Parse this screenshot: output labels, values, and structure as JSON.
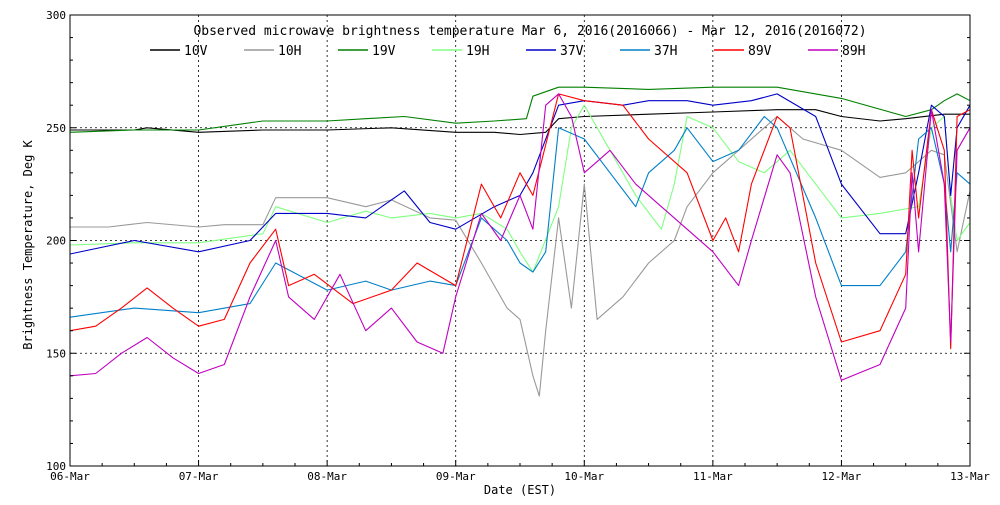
{
  "chart_data": {
    "type": "line",
    "title": "Observed microwave brightness temperature Mar  6, 2016(2016066) - Mar 12, 2016(2016072)",
    "xlabel": "Date (EST)",
    "ylabel": "Brightness Temperature, Deg K",
    "xlim": [
      0,
      7
    ],
    "ylim": [
      100,
      300
    ],
    "x_ticks": [
      {
        "value": 0,
        "label": "06-Mar"
      },
      {
        "value": 1,
        "label": "07-Mar"
      },
      {
        "value": 2,
        "label": "08-Mar"
      },
      {
        "value": 3,
        "label": "09-Mar"
      },
      {
        "value": 4,
        "label": "10-Mar"
      },
      {
        "value": 5,
        "label": "11-Mar"
      },
      {
        "value": 6,
        "label": "12-Mar"
      },
      {
        "value": 7,
        "label": "13-Mar"
      }
    ],
    "y_ticks": [
      {
        "value": 100,
        "label": "100"
      },
      {
        "value": 150,
        "label": "150"
      },
      {
        "value": 200,
        "label": "200"
      },
      {
        "value": 250,
        "label": "250"
      },
      {
        "value": 300,
        "label": "300"
      }
    ],
    "grid": true,
    "legend_position": "top",
    "series": [
      {
        "name": "10V",
        "color": "#000000",
        "x": [
          0,
          0.5,
          0.6,
          1,
          1.5,
          2,
          2.5,
          3,
          3.3,
          3.5,
          3.7,
          3.8,
          4,
          4.5,
          5,
          5.5,
          5.8,
          6,
          6.3,
          6.5,
          6.8,
          7
        ],
        "values": [
          249,
          249,
          250,
          248,
          249,
          249,
          250,
          248,
          248,
          247,
          248,
          254,
          255,
          256,
          257,
          258,
          258,
          255,
          253,
          254,
          256,
          256
        ]
      },
      {
        "name": "10H",
        "color": "#999999",
        "x": [
          0,
          0.3,
          0.6,
          1,
          1.2,
          1.5,
          1.6,
          2,
          2.3,
          2.5,
          2.8,
          3,
          3.2,
          3.4,
          3.5,
          3.6,
          3.65,
          3.7,
          3.8,
          3.9,
          4,
          4.1,
          4.3,
          4.5,
          4.7,
          4.8,
          5,
          5.2,
          5.5,
          5.7,
          6,
          6.3,
          6.5,
          6.6,
          6.7,
          6.8,
          6.9,
          7
        ],
        "values": [
          206,
          206,
          208,
          206,
          207,
          207,
          219,
          219,
          215,
          218,
          210,
          209,
          190,
          170,
          165,
          140,
          131,
          160,
          210,
          170,
          225,
          165,
          175,
          190,
          200,
          215,
          230,
          240,
          255,
          245,
          240,
          228,
          230,
          235,
          240,
          238,
          195,
          222
        ]
      },
      {
        "name": "19V",
        "color": "#008000",
        "x": [
          0,
          0.5,
          1,
          1.5,
          2,
          2.3,
          2.6,
          3,
          3.3,
          3.55,
          3.6,
          3.8,
          4,
          4.5,
          5,
          5.5,
          6,
          6.5,
          6.7,
          6.8,
          6.9,
          7
        ],
        "values": [
          248,
          249,
          249,
          253,
          253,
          254,
          255,
          252,
          253,
          254,
          264,
          268,
          268,
          267,
          268,
          268,
          263,
          255,
          258,
          262,
          265,
          262
        ]
      },
      {
        "name": "19H",
        "color": "#80ff80",
        "x": [
          0,
          0.5,
          1,
          1.5,
          1.6,
          2,
          2.3,
          2.5,
          2.8,
          3,
          3.2,
          3.4,
          3.5,
          3.6,
          3.8,
          3.9,
          4,
          4.2,
          4.4,
          4.6,
          4.7,
          4.8,
          5,
          5.2,
          5.4,
          5.6,
          5.8,
          6,
          6.3,
          6.6,
          6.7,
          6.8,
          6.85,
          6.9,
          7
        ],
        "values": [
          198,
          199,
          199,
          203,
          215,
          208,
          213,
          210,
          212,
          210,
          212,
          205,
          195,
          186,
          215,
          250,
          260,
          240,
          220,
          205,
          225,
          255,
          250,
          235,
          230,
          240,
          225,
          210,
          212,
          215,
          250,
          255,
          220,
          200,
          208
        ]
      },
      {
        "name": "37V",
        "color": "#0000c8",
        "x": [
          0,
          0.5,
          1,
          1.4,
          1.6,
          2,
          2.3,
          2.6,
          2.8,
          3,
          3.3,
          3.5,
          3.6,
          3.8,
          4,
          4.3,
          4.5,
          4.8,
          5,
          5.3,
          5.5,
          5.8,
          6,
          6.3,
          6.5,
          6.6,
          6.7,
          6.8,
          6.85,
          6.9,
          7
        ],
        "values": [
          194,
          200,
          195,
          200,
          212,
          212,
          210,
          222,
          208,
          205,
          215,
          220,
          230,
          260,
          262,
          260,
          262,
          262,
          260,
          262,
          265,
          255,
          225,
          203,
          203,
          230,
          260,
          255,
          220,
          250,
          260
        ]
      },
      {
        "name": "37H",
        "color": "#0080c8",
        "x": [
          0,
          0.5,
          1,
          1.4,
          1.6,
          2,
          2.3,
          2.5,
          2.8,
          3,
          3.2,
          3.4,
          3.5,
          3.6,
          3.7,
          3.8,
          4,
          4.2,
          4.4,
          4.5,
          4.7,
          4.8,
          5,
          5.2,
          5.4,
          5.5,
          5.8,
          6,
          6.3,
          6.5,
          6.6,
          6.7,
          6.8,
          6.85,
          6.9,
          7
        ],
        "values": [
          166,
          170,
          168,
          172,
          190,
          178,
          182,
          178,
          182,
          180,
          210,
          200,
          190,
          186,
          195,
          250,
          245,
          230,
          215,
          230,
          240,
          250,
          235,
          240,
          255,
          250,
          210,
          180,
          180,
          195,
          245,
          250,
          225,
          195,
          230,
          225
        ]
      },
      {
        "name": "89V",
        "color": "#ff0000",
        "x": [
          0,
          0.2,
          0.4,
          0.6,
          0.8,
          1,
          1.2,
          1.4,
          1.6,
          1.7,
          1.9,
          2.2,
          2.5,
          2.7,
          3,
          3.2,
          3.35,
          3.5,
          3.6,
          3.8,
          4,
          4.3,
          4.5,
          4.8,
          5,
          5.1,
          5.2,
          5.3,
          5.5,
          5.6,
          5.8,
          6,
          6.3,
          6.5,
          6.55,
          6.6,
          6.7,
          6.8,
          6.85,
          6.9,
          7
        ],
        "values": [
          160,
          162,
          170,
          179,
          170,
          162,
          165,
          190,
          205,
          180,
          185,
          172,
          178,
          190,
          180,
          225,
          210,
          230,
          220,
          265,
          262,
          260,
          245,
          230,
          200,
          210,
          195,
          225,
          255,
          250,
          190,
          155,
          160,
          185,
          240,
          210,
          258,
          240,
          152,
          255,
          258
        ]
      },
      {
        "name": "89H",
        "color": "#c000c0",
        "x": [
          0,
          0.2,
          0.4,
          0.6,
          0.8,
          1,
          1.2,
          1.4,
          1.6,
          1.7,
          1.9,
          2.1,
          2.3,
          2.5,
          2.7,
          2.9,
          3,
          3.2,
          3.35,
          3.5,
          3.6,
          3.7,
          3.8,
          3.9,
          4,
          4.2,
          4.4,
          4.6,
          4.8,
          5,
          5.2,
          5.3,
          5.5,
          5.6,
          5.8,
          6,
          6.3,
          6.5,
          6.55,
          6.6,
          6.7,
          6.8,
          6.85,
          6.9,
          7
        ],
        "values": [
          140,
          141,
          150,
          157,
          148,
          141,
          145,
          175,
          200,
          175,
          165,
          185,
          160,
          170,
          155,
          150,
          175,
          212,
          200,
          220,
          205,
          260,
          265,
          255,
          230,
          240,
          225,
          215,
          205,
          195,
          180,
          200,
          238,
          230,
          175,
          138,
          145,
          170,
          230,
          195,
          258,
          225,
          155,
          240,
          250
        ]
      }
    ]
  }
}
